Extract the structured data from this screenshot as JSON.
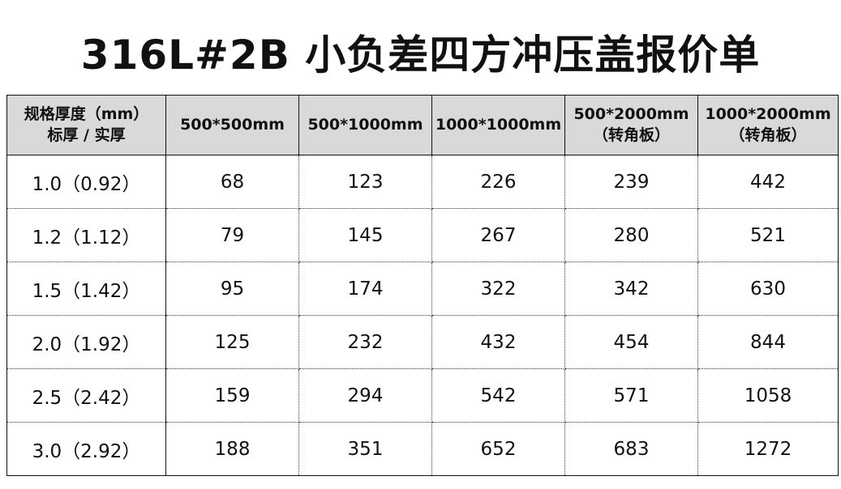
{
  "title": "316L#2B 小负差四方冲压盖报价单",
  "header": [
    [
      "规格厚度（mm）",
      "标厚 / 实厚"
    ],
    [
      "500*500mm",
      ""
    ],
    [
      "500*1000mm",
      ""
    ],
    [
      "1000*1000mm",
      ""
    ],
    [
      "500*2000mm",
      "（转角板）"
    ],
    [
      "1000*2000mm",
      "（转角板）"
    ]
  ],
  "rows": [
    [
      "1.0（0.92）",
      "68",
      "123",
      "226",
      "239",
      "442"
    ],
    [
      "1.2（1.12）",
      "79",
      "145",
      "267",
      "280",
      "521"
    ],
    [
      "1.5（1.42）",
      "95",
      "174",
      "322",
      "342",
      "630"
    ],
    [
      "2.0（1.92）",
      "125",
      "232",
      "432",
      "454",
      "844"
    ],
    [
      "2.5（2.42）",
      "159",
      "294",
      "542",
      "571",
      "1058"
    ],
    [
      "3.0（2.92）",
      "188",
      "351",
      "652",
      "683",
      "1272"
    ]
  ],
  "colors": {
    "header_bg": "#d9d9d9"
  }
}
